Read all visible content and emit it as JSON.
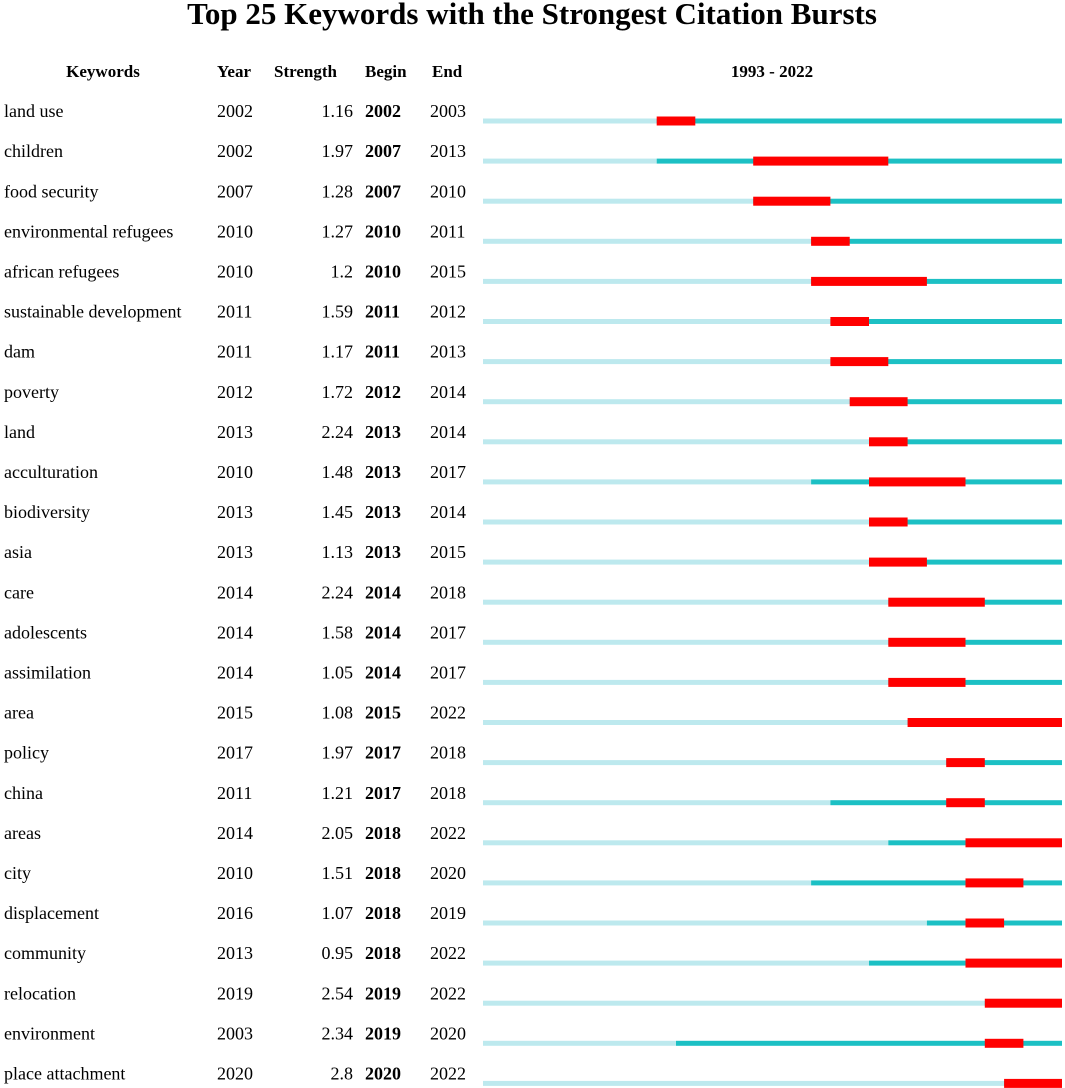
{
  "chart_data": {
    "type": "burst",
    "title": "Top 25 Keywords with the Strongest Citation Bursts",
    "headers": [
      "Keywords",
      "Year",
      "Strength",
      "Begin",
      "End"
    ],
    "range_label": "1993 - 2022",
    "xlim": [
      1993,
      2022
    ],
    "colors": {
      "before": "#bde9ee",
      "after": "#1cc0c4",
      "burst": "#ff0000"
    },
    "keywords": [
      "land use",
      "children",
      "food security",
      "environmental refugees",
      "african refugees",
      "sustainable development",
      "dam",
      "poverty",
      "land",
      "acculturation",
      "biodiversity",
      "asia",
      "care",
      "adolescents",
      "assimilation",
      "area",
      "policy",
      "china",
      "areas",
      "city",
      "displacement",
      "community",
      "relocation",
      "environment",
      "place attachment"
    ],
    "year": [
      2002,
      2002,
      2007,
      2010,
      2010,
      2011,
      2011,
      2012,
      2013,
      2010,
      2013,
      2013,
      2014,
      2014,
      2014,
      2015,
      2017,
      2011,
      2014,
      2010,
      2016,
      2013,
      2019,
      2003,
      2020
    ],
    "strength": [
      1.16,
      1.97,
      1.28,
      1.27,
      1.2,
      1.59,
      1.17,
      1.72,
      2.24,
      1.48,
      1.45,
      1.13,
      2.24,
      1.58,
      1.05,
      1.08,
      1.97,
      1.21,
      2.05,
      1.51,
      1.07,
      0.95,
      2.54,
      2.34,
      2.8
    ],
    "begin": [
      2002,
      2007,
      2007,
      2010,
      2010,
      2011,
      2011,
      2012,
      2013,
      2013,
      2013,
      2013,
      2014,
      2014,
      2014,
      2015,
      2017,
      2017,
      2018,
      2018,
      2018,
      2018,
      2019,
      2019,
      2020
    ],
    "end": [
      2003,
      2013,
      2010,
      2011,
      2015,
      2012,
      2013,
      2014,
      2014,
      2017,
      2014,
      2015,
      2018,
      2017,
      2017,
      2022,
      2018,
      2018,
      2022,
      2020,
      2019,
      2022,
      2022,
      2020,
      2022
    ]
  }
}
